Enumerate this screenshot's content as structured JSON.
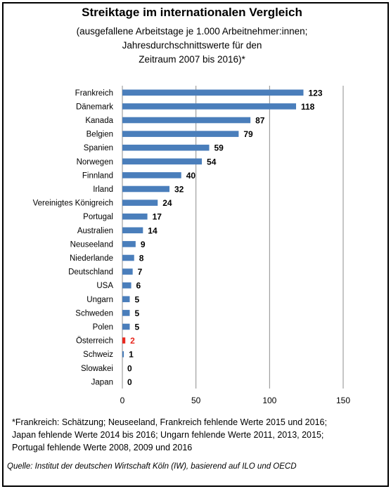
{
  "chart_data": {
    "type": "bar",
    "orientation": "horizontal",
    "title": "Streiktage im internationalen  Vergleich",
    "subtitle_lines": [
      "(ausgefallene Arbeitstage je 1.000 Arbeitnehmer:innen;",
      "Jahresdurchschnittswerte für den",
      "Zeitraum 2007 bis 2016)*"
    ],
    "categories": [
      "Frankreich",
      "Dänemark",
      "Kanada",
      "Belgien",
      "Spanien",
      "Norwegen",
      "Finnland",
      "Irland",
      "Vereinigtes Königreich",
      "Portugal",
      "Australien",
      "Neuseeland",
      "Niederlande",
      "Deutschland",
      "USA",
      "Ungarn",
      "Schweden",
      "Polen",
      "Österreich",
      "Schweiz",
      "Slowakei",
      "Japan"
    ],
    "values": [
      123,
      118,
      87,
      79,
      59,
      54,
      40,
      32,
      24,
      17,
      14,
      9,
      8,
      7,
      6,
      5,
      5,
      5,
      2,
      1,
      0,
      0
    ],
    "xlim": [
      0,
      150
    ],
    "x_ticks": [
      0,
      50,
      100,
      150
    ],
    "grid": "vertical",
    "legend": "none",
    "bar_color": "#4a7ebb",
    "highlight_color": "#e8281f",
    "highlight_category": "Österreich"
  },
  "footnote_lines": [
    "*Frankreich: Schätzung; Neuseeland, Frankreich fehlende Werte 2015 und 2016;",
    "Japan fehlende Werte 2014 bis 2016; Ungarn fehlende Werte 2011, 2013, 2015;",
    "Portugal fehlende Werte 2008, 2009 und 2016"
  ],
  "source": "Quelle: Institut der deutschen Wirtschaft Köln (IW), basierend auf ILO und OECD"
}
